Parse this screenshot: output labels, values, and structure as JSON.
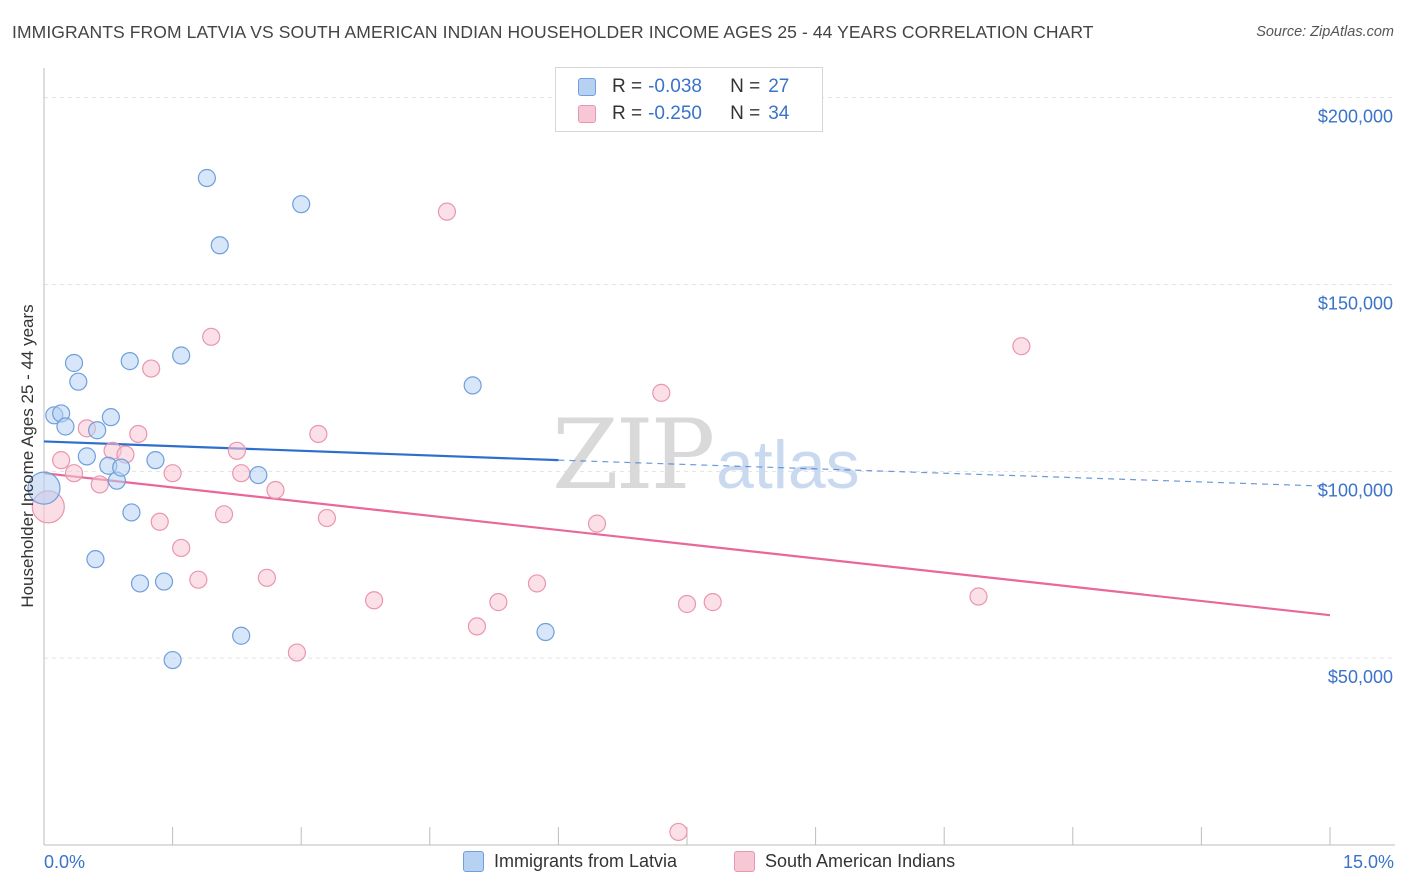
{
  "title": "IMMIGRANTS FROM LATVIA VS SOUTH AMERICAN INDIAN HOUSEHOLDER INCOME AGES 25 - 44 YEARS CORRELATION CHART",
  "source": "Source: ZipAtlas.com",
  "watermark": {
    "zip": "ZIP",
    "atlas": "atlas"
  },
  "legend": {
    "r_label": "R =",
    "n_label": "N =",
    "rows": [
      {
        "r": "-0.038",
        "n": "27"
      },
      {
        "r": "-0.250",
        "n": "34"
      }
    ]
  },
  "colors": {
    "blue_fill": "#b7d1f3",
    "blue_stroke": "#6f9fdc",
    "blue_line": "#2e6fce",
    "pink_fill": "#f8c7d6",
    "pink_stroke": "#e996b0",
    "pink_line": "#e8689a",
    "tick_text": "#3a73c9",
    "grid": "#e2e2e2"
  },
  "chart_data": {
    "type": "scatter",
    "title": "IMMIGRANTS FROM LATVIA VS SOUTH AMERICAN INDIAN HOUSEHOLDER INCOME AGES 25 - 44 YEARS CORRELATION CHART",
    "xlabel": "",
    "ylabel": "Householder Income Ages 25 - 44 years",
    "xlim": [
      0,
      15
    ],
    "ylim": [
      0,
      205000
    ],
    "x_tick_labels": [
      "0.0%",
      "15.0%"
    ],
    "y_ticks": [
      50000,
      100000,
      150000,
      200000
    ],
    "y_tick_labels": [
      "$50,000",
      "$100,000",
      "$150,000",
      "$200,000"
    ],
    "grid": true,
    "legend_position": "bottom",
    "series": [
      {
        "name": "Immigrants from Latvia",
        "points": [
          [
            0.0,
            95500
          ],
          [
            0.12,
            115000
          ],
          [
            0.2,
            115500
          ],
          [
            0.25,
            112000
          ],
          [
            0.35,
            129000
          ],
          [
            0.4,
            124000
          ],
          [
            0.5,
            104000
          ],
          [
            0.6,
            76500
          ],
          [
            0.62,
            111000
          ],
          [
            0.75,
            101500
          ],
          [
            0.78,
            114500
          ],
          [
            0.85,
            97500
          ],
          [
            0.9,
            101000
          ],
          [
            1.0,
            129500
          ],
          [
            1.02,
            89000
          ],
          [
            1.12,
            70000
          ],
          [
            1.3,
            103000
          ],
          [
            1.4,
            70500
          ],
          [
            1.5,
            49500
          ],
          [
            1.6,
            131000
          ],
          [
            1.9,
            178500
          ],
          [
            2.05,
            160500
          ],
          [
            2.3,
            56000
          ],
          [
            2.5,
            99000
          ],
          [
            3.0,
            171500
          ],
          [
            5.0,
            123000
          ],
          [
            5.85,
            57000
          ]
        ],
        "trend": {
          "x": [
            0.0,
            6.0
          ],
          "y": [
            108000,
            103000
          ],
          "dashed_to": [
            15.0,
            96000
          ]
        }
      },
      {
        "name": "South American Indians",
        "points": [
          [
            0.05,
            90500
          ],
          [
            0.2,
            103000
          ],
          [
            0.35,
            99500
          ],
          [
            0.5,
            111500
          ],
          [
            0.65,
            96500
          ],
          [
            0.8,
            105500
          ],
          [
            0.95,
            104500
          ],
          [
            1.1,
            110000
          ],
          [
            1.25,
            127500
          ],
          [
            1.35,
            86500
          ],
          [
            1.5,
            99500
          ],
          [
            1.6,
            79500
          ],
          [
            1.8,
            71000
          ],
          [
            1.95,
            136000
          ],
          [
            2.1,
            88500
          ],
          [
            2.25,
            105500
          ],
          [
            2.3,
            99500
          ],
          [
            2.6,
            71500
          ],
          [
            2.7,
            95000
          ],
          [
            2.95,
            51500
          ],
          [
            3.2,
            110000
          ],
          [
            3.3,
            87500
          ],
          [
            3.85,
            65500
          ],
          [
            4.7,
            169500
          ],
          [
            5.05,
            58500
          ],
          [
            5.3,
            65000
          ],
          [
            5.75,
            70000
          ],
          [
            6.45,
            86000
          ],
          [
            7.2,
            121000
          ],
          [
            7.4,
            3500
          ],
          [
            7.5,
            64500
          ],
          [
            7.8,
            65000
          ],
          [
            10.9,
            66500
          ],
          [
            11.4,
            133500
          ]
        ],
        "trend": {
          "x": [
            0.0,
            15.0
          ],
          "y": [
            99500,
            61500
          ]
        }
      }
    ]
  }
}
